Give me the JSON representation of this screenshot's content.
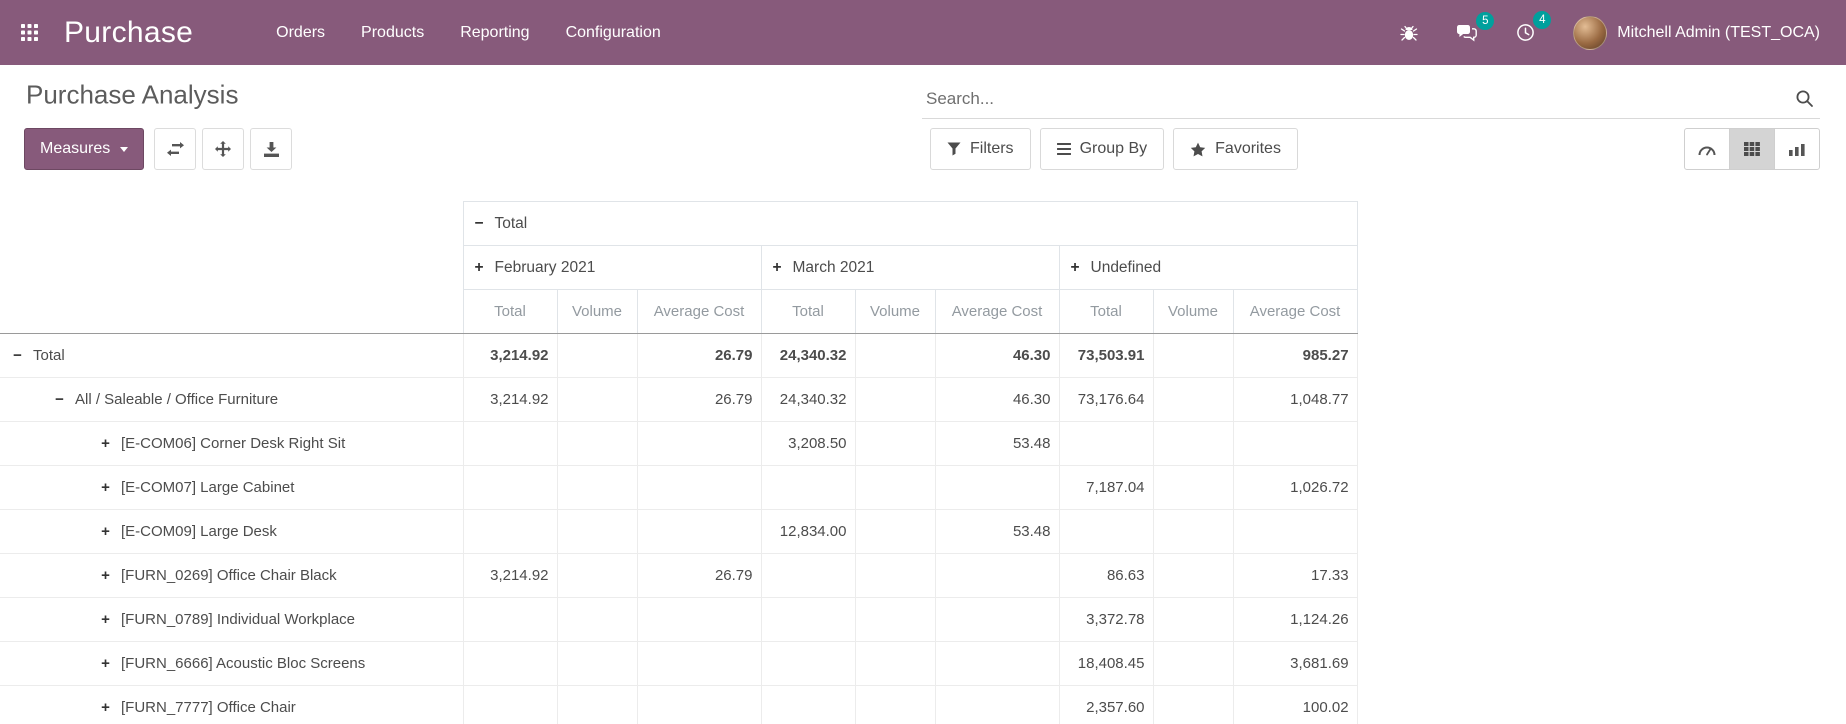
{
  "colors": {
    "navbar_bg": "#875A7B",
    "accent": "#875A7B",
    "badge_bg": "#00A09D",
    "active_view_bg": "#d4d4d4",
    "header_separator": "#9a9a9a",
    "cell_border": "#ececec",
    "muted_header_text": "#939aa0"
  },
  "icons": {
    "apps": "grid-3x3",
    "debug": "bug",
    "messages": "speech-bubbles",
    "activities": "clock",
    "search": "magnifier",
    "measures_caret": "caret-down",
    "flip_axis": "exchange-arrows",
    "expand_all": "four-way-arrows",
    "download": "download-arrow",
    "filters": "funnel",
    "group_by": "bars",
    "favorites": "star",
    "view_dashboard": "gauge",
    "view_pivot": "grid",
    "view_graph": "bar-chart",
    "collapse_sign": "−",
    "expand_sign": "+"
  },
  "navbar": {
    "app_name": "Purchase",
    "menus": [
      "Orders",
      "Products",
      "Reporting",
      "Configuration"
    ],
    "badges": {
      "messages": "5",
      "activities": "4"
    },
    "user": "Mitchell Admin (TEST_OCA)"
  },
  "control_panel": {
    "title": "Purchase Analysis",
    "search_placeholder": "Search...",
    "measures_label": "Measures",
    "filters_label": "Filters",
    "group_by_label": "Group By",
    "favorites_label": "Favorites"
  },
  "pivot": {
    "col_root": {
      "label": "Total",
      "sign": "−"
    },
    "col_groups": [
      {
        "label": "February 2021",
        "sign": "+"
      },
      {
        "label": "March 2021",
        "sign": "+"
      },
      {
        "label": "Undefined",
        "sign": "+"
      }
    ],
    "measures": [
      "Total",
      "Volume",
      "Average Cost"
    ],
    "rows": [
      {
        "label": "Total",
        "sign": "−",
        "level": 0,
        "bold": true,
        "cells": [
          "3,214.92",
          "",
          "26.79",
          "24,340.32",
          "",
          "46.30",
          "73,503.91",
          "",
          "985.27"
        ]
      },
      {
        "label": "All / Saleable / Office Furniture",
        "sign": "−",
        "level": 1,
        "bold": false,
        "cells": [
          "3,214.92",
          "",
          "26.79",
          "24,340.32",
          "",
          "46.30",
          "73,176.64",
          "",
          "1,048.77"
        ]
      },
      {
        "label": "[E-COM06] Corner Desk Right Sit",
        "sign": "+",
        "level": 2,
        "bold": false,
        "cells": [
          "",
          "",
          "",
          "3,208.50",
          "",
          "53.48",
          "",
          "",
          ""
        ]
      },
      {
        "label": "[E-COM07] Large Cabinet",
        "sign": "+",
        "level": 2,
        "bold": false,
        "cells": [
          "",
          "",
          "",
          "",
          "",
          "",
          "7,187.04",
          "",
          "1,026.72"
        ]
      },
      {
        "label": "[E-COM09] Large Desk",
        "sign": "+",
        "level": 2,
        "bold": false,
        "cells": [
          "",
          "",
          "",
          "12,834.00",
          "",
          "53.48",
          "",
          "",
          ""
        ]
      },
      {
        "label": "[FURN_0269] Office Chair Black",
        "sign": "+",
        "level": 2,
        "bold": false,
        "cells": [
          "3,214.92",
          "",
          "26.79",
          "",
          "",
          "",
          "86.63",
          "",
          "17.33"
        ]
      },
      {
        "label": "[FURN_0789] Individual Workplace",
        "sign": "+",
        "level": 2,
        "bold": false,
        "cells": [
          "",
          "",
          "",
          "",
          "",
          "",
          "3,372.78",
          "",
          "1,124.26"
        ]
      },
      {
        "label": "[FURN_6666] Acoustic Bloc Screens",
        "sign": "+",
        "level": 2,
        "bold": false,
        "cells": [
          "",
          "",
          "",
          "",
          "",
          "",
          "18,408.45",
          "",
          "3,681.69"
        ]
      },
      {
        "label": "[FURN_7777] Office Chair",
        "sign": "+",
        "level": 2,
        "bold": false,
        "cells": [
          "",
          "",
          "",
          "",
          "",
          "",
          "2,357.60",
          "",
          "100.02"
        ]
      }
    ]
  }
}
